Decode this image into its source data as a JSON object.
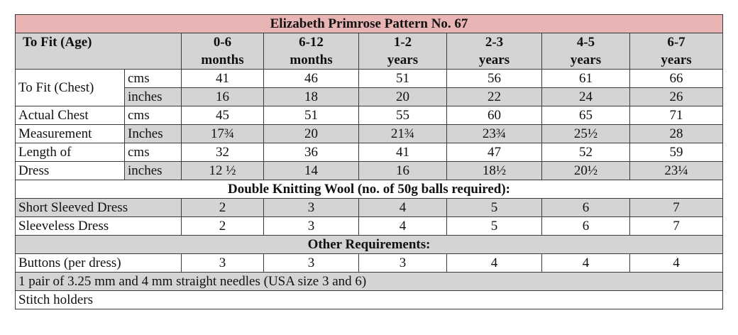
{
  "title": "Elizabeth Primrose Pattern No. 67",
  "header": {
    "label": "To Fit (Age)",
    "ages": [
      {
        "l1": "0-6",
        "l2": "months"
      },
      {
        "l1": "6-12",
        "l2": "months"
      },
      {
        "l1": "1-2",
        "l2": "years"
      },
      {
        "l1": "2-3",
        "l2": "years"
      },
      {
        "l1": "4-5",
        "l2": "years"
      },
      {
        "l1": "6-7",
        "l2": "years"
      }
    ]
  },
  "chest": {
    "label": "To Fit (Chest)",
    "cms_unit": "cms",
    "cms": [
      "41",
      "46",
      "51",
      "56",
      "61",
      "66"
    ],
    "inch_unit": "inches",
    "inches": [
      "16",
      "18",
      "20",
      "22",
      "24",
      "26"
    ]
  },
  "actual": {
    "label_1": "Actual Chest",
    "label_2": "Measurement",
    "cms_unit": "cms",
    "cms": [
      "45",
      "51",
      "55",
      "60",
      "65",
      "71"
    ],
    "inch_unit": "Inches",
    "inches": [
      "17¾",
      "20",
      "21¾",
      "23¾",
      "25½",
      "28"
    ]
  },
  "length": {
    "label_1": "Length of",
    "label_2": "Dress",
    "cms_unit": "cms",
    "cms": [
      "32",
      "36",
      "41",
      "47",
      "52",
      "59"
    ],
    "inch_unit": "inches",
    "inches": [
      "12 ½",
      "14",
      "16",
      "18½",
      "20½",
      "23¼"
    ]
  },
  "wool": {
    "heading": "Double Knitting Wool (no. of 50g balls required):",
    "short": {
      "label": "Short Sleeved Dress",
      "values": [
        "2",
        "3",
        "4",
        "5",
        "6",
        "7"
      ]
    },
    "sleeveless": {
      "label": "Sleeveless Dress",
      "values": [
        "2",
        "3",
        "4",
        "5",
        "6",
        "7"
      ]
    }
  },
  "other": {
    "heading": "Other Requirements:",
    "buttons": {
      "label": "Buttons (per dress)",
      "values": [
        "3",
        "3",
        "3",
        "4",
        "4",
        "4"
      ]
    },
    "needles": "1 pair of 3.25 mm and 4 mm straight needles (USA size 3 and 6)",
    "holders": "Stitch holders"
  }
}
